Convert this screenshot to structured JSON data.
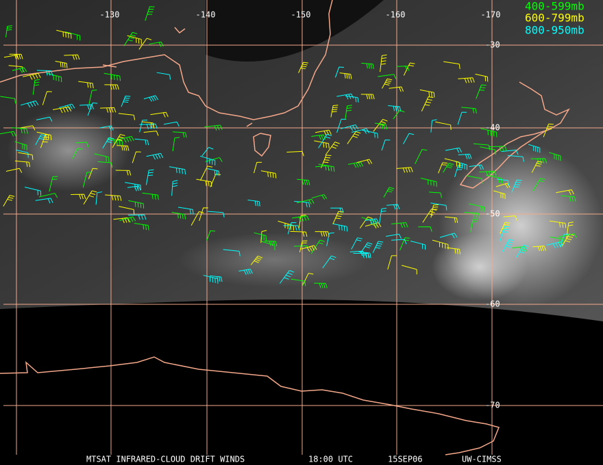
{
  "map": {
    "lon_labels": [
      "-130",
      "-140",
      "-150",
      "-160",
      "-170"
    ],
    "lat_labels": [
      "-30",
      "-40",
      "-50",
      "-60",
      "-70"
    ],
    "legend": [
      "400-599mb",
      "600-799mb",
      "800-950mb"
    ],
    "footer": [
      "MTSAT INFRARED-CLOUD DRIFT WINDS",
      "18:00 UTC",
      "15SEP06",
      "UW-CIMSS"
    ]
  }
}
